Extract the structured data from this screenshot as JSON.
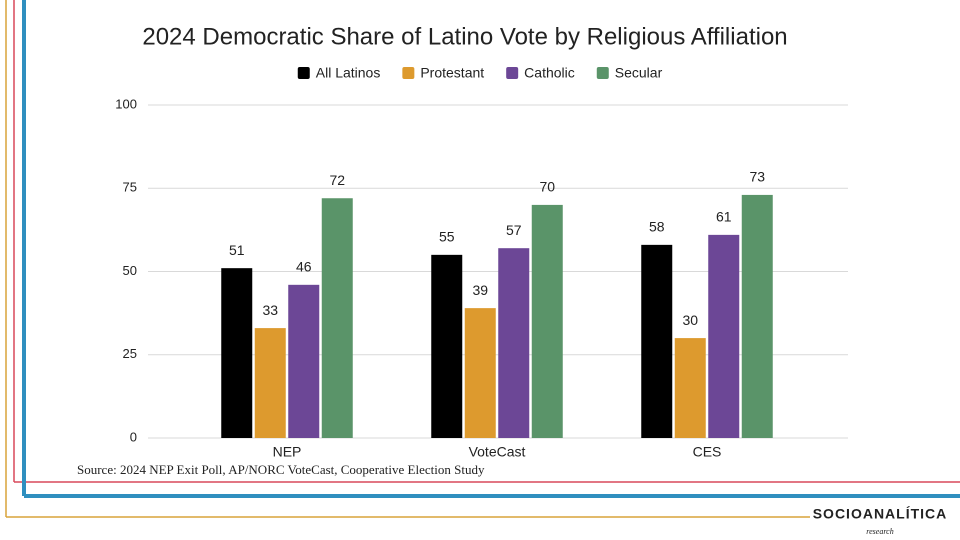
{
  "chart_data": {
    "type": "bar",
    "title": "2024 Democratic Share of Latino Vote by Religious Affiliation",
    "categories": [
      "NEP",
      "VoteCast",
      "CES"
    ],
    "series": [
      {
        "name": "All Latinos",
        "color": "#000000",
        "values": [
          51,
          55,
          58
        ]
      },
      {
        "name": "Protestant",
        "color": "#dd9a2e",
        "values": [
          33,
          39,
          30
        ]
      },
      {
        "name": "Catholic",
        "color": "#6c4796",
        "values": [
          46,
          57,
          61
        ]
      },
      {
        "name": "Secular",
        "color": "#5a9469",
        "values": [
          72,
          70,
          73
        ]
      }
    ],
    "ylim": [
      0,
      100
    ],
    "yticks": [
      0,
      25,
      50,
      75,
      100
    ],
    "grid": true,
    "legend": "top",
    "source": "Source: 2024 NEP Exit Poll, AP/NORC VoteCast, Cooperative Election Study"
  },
  "logo": {
    "name": "SOCIOANALÍTICA",
    "tagline": "research"
  }
}
